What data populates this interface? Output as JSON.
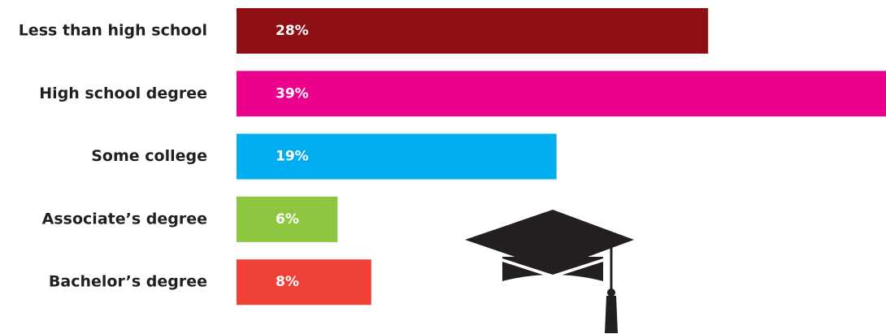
{
  "chart_data": {
    "type": "bar",
    "orientation": "horizontal",
    "categories": [
      "Less than high school",
      "High school degree",
      "Some college",
      "Associate’s degree",
      "Bachelor’s degree"
    ],
    "values": [
      28,
      39,
      19,
      6,
      8
    ],
    "value_labels": [
      "28%",
      "39%",
      "19%",
      "6%",
      "8%"
    ],
    "colors": [
      "#8e1014",
      "#ec008c",
      "#00aeef",
      "#8dc63f",
      "#ef4136"
    ]
  }
}
